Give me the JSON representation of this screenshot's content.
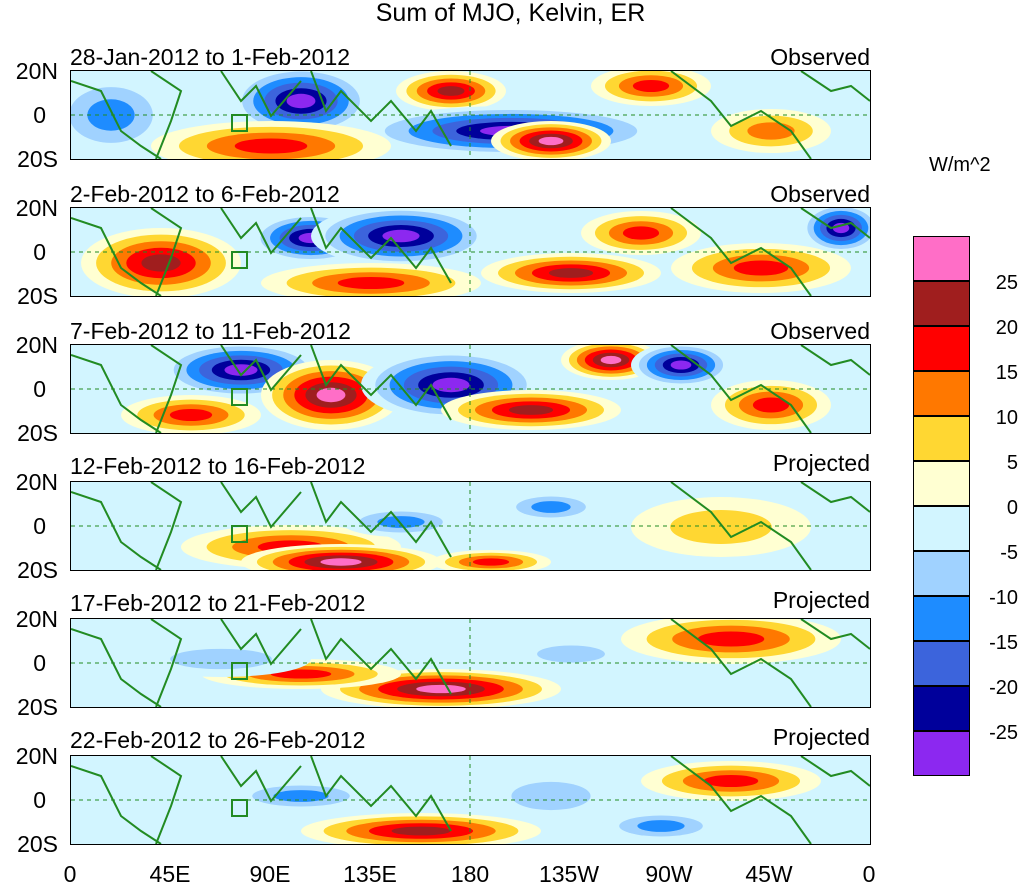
{
  "title": "Sum of MJO, Kelvin, ER",
  "panels": [
    {
      "date_range": "28-Jan-2012 to 1-Feb-2012",
      "status": "Observed"
    },
    {
      "date_range": "2-Feb-2012 to 6-Feb-2012",
      "status": "Observed"
    },
    {
      "date_range": "7-Feb-2012 to 11-Feb-2012",
      "status": "Observed"
    },
    {
      "date_range": "12-Feb-2012 to 16-Feb-2012",
      "status": "Projected"
    },
    {
      "date_range": "17-Feb-2012 to 21-Feb-2012",
      "status": "Projected"
    },
    {
      "date_range": "22-Feb-2012 to 26-Feb-2012",
      "status": "Projected"
    }
  ],
  "y_axis_labels": [
    "20N",
    "0",
    "20S"
  ],
  "x_axis_labels": [
    "0",
    "45E",
    "90E",
    "135E",
    "180",
    "135W",
    "90W",
    "45W",
    "0"
  ],
  "colorbar": {
    "units": "W/m^2",
    "labels": [
      "25",
      "20",
      "15",
      "10",
      "5",
      "0",
      "-5",
      "-10",
      "-15",
      "-20",
      "-25"
    ],
    "colors": [
      "#ff6ec7",
      "#a01e1e",
      "#ff0000",
      "#ff7800",
      "#ffd732",
      "#ffffd2",
      "#d2f5ff",
      "#a0d2ff",
      "#1e8cff",
      "#3c64dc",
      "#00009b",
      "#8c28f0"
    ]
  }
}
